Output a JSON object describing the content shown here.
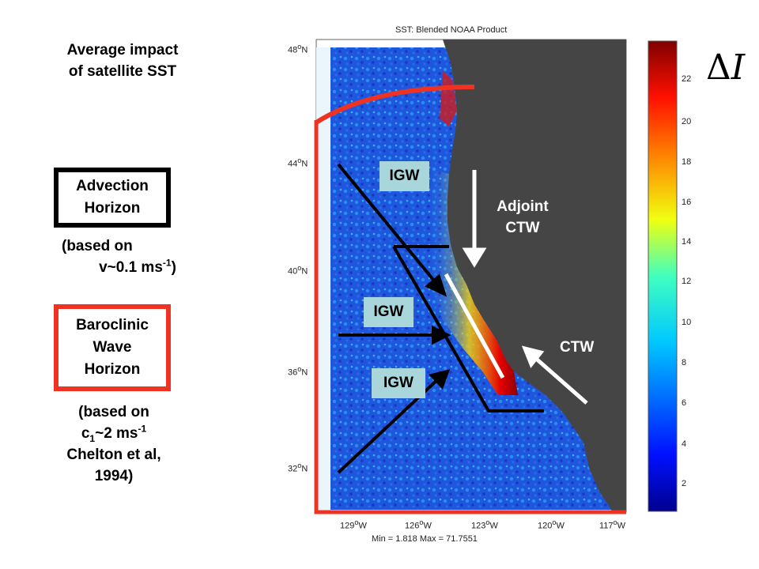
{
  "heading": [
    "Average impact",
    "of satellite SST"
  ],
  "advection_box": [
    "Advection",
    "Horizon"
  ],
  "advection_note": {
    "line1": "(based on",
    "line2_pre": "v~0.1 ms",
    "line2_sup": "-1",
    "line2_post": ")"
  },
  "baroclinic_box": [
    "Baroclinic",
    "Wave",
    "Horizon"
  ],
  "baroclinic_note": {
    "line1": "(based on",
    "line2_pre": "c",
    "line2_sub": "1",
    "line2_mid": "~2 ms",
    "line2_sup": "-1",
    "line3": "Chelton et al,",
    "line4": "1994)"
  },
  "map": {
    "title": "SST: Blended NOAA Product",
    "footer": "Min = 1.818 Max = 71.7551",
    "lat_labels": [
      "48",
      "44",
      "40",
      "36",
      "32"
    ],
    "lat_suffix": "N",
    "lon_labels": [
      "129",
      "126",
      "123",
      "120",
      "117"
    ],
    "lon_suffix": "W",
    "colors": {
      "land": "#454545",
      "ocean_low": "#1a4fd6",
      "ocean_high": "#8b0000"
    }
  },
  "wave_labels": {
    "igw": "IGW",
    "adjoint_ctw": [
      "Adjoint",
      "CTW"
    ],
    "ctw": "CTW"
  },
  "colorbar": {
    "ticks": [
      "22",
      "20",
      "18",
      "16",
      "14",
      "12",
      "10",
      "8",
      "6",
      "4",
      "2"
    ],
    "symbol": "ΔI",
    "symbol_delta": "Δ",
    "symbol_var": "I"
  }
}
